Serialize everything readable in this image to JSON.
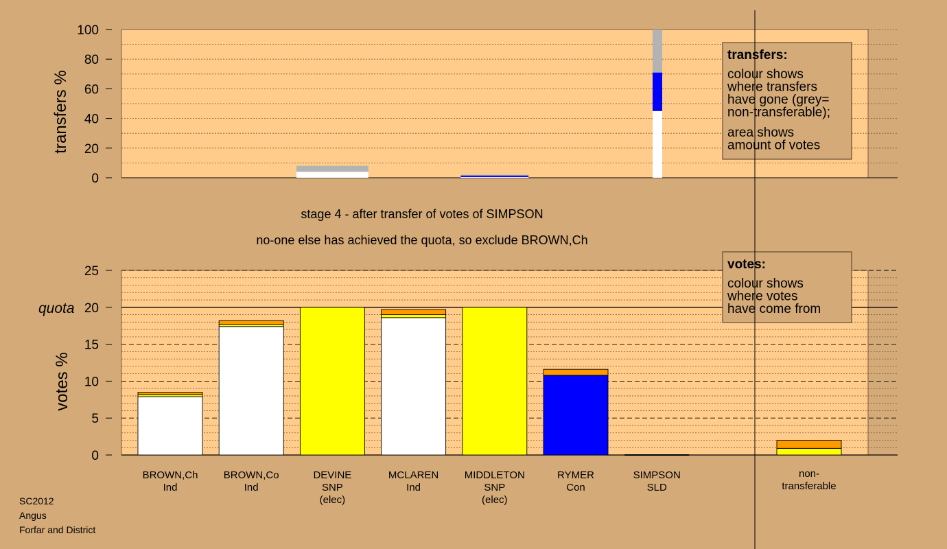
{
  "colors": {
    "background": "#d4aa78",
    "panel": "#ffcc8c",
    "white": "#ffffff",
    "yellow": "#ffff00",
    "blue": "#0000ff",
    "orange": "#ff9900",
    "grey": "#b3b3b3",
    "ink": "#000000"
  },
  "stage_text": {
    "line1": "stage 4 - after transfer of votes of SIMPSON",
    "line2": "no-one else has achieved the quota, so exclude BROWN,Ch"
  },
  "footer": {
    "line1": "SC2012",
    "line2": "Angus",
    "line3": "Forfar and District"
  },
  "legend_transfers": {
    "title": "transfers:",
    "lines1": [
      "colour shows",
      "where transfers",
      "have gone (grey=",
      "non-transferable);"
    ],
    "lines2": [
      "area shows",
      "amount of votes"
    ]
  },
  "legend_votes": {
    "title": "votes:",
    "lines": [
      "colour shows",
      "where votes",
      "have come from"
    ]
  },
  "chart_data": [
    {
      "type": "bar",
      "ylabel": "transfers %",
      "ylim": [
        0,
        100
      ],
      "yticks": [
        "0",
        "20",
        "40",
        "60",
        "80",
        "100"
      ],
      "note": "stacked transfer bars; bar width proportional to votes transferred",
      "bars": [
        {
          "candidate": "DEVINE",
          "relative_width": 0.035,
          "segments": [
            {
              "color": "white",
              "value": 4
            },
            {
              "color": "grey",
              "value": 4
            }
          ]
        },
        {
          "candidate": "MIDDLETON",
          "relative_width": 0.033,
          "segments": [
            {
              "color": "white",
              "value": 0.5
            },
            {
              "color": "blue",
              "value": 1
            },
            {
              "color": "grey",
              "value": 0.5
            }
          ]
        },
        {
          "candidate": "SIMPSON",
          "relative_width": 0.005,
          "segments": [
            {
              "color": "white",
              "value": 45
            },
            {
              "color": "blue",
              "value": 26
            },
            {
              "color": "grey",
              "value": 29
            }
          ]
        }
      ]
    },
    {
      "type": "bar",
      "ylabel": "votes %",
      "ylim": [
        0,
        25
      ],
      "yticks": [
        "0",
        "5",
        "10",
        "15",
        "20",
        "25"
      ],
      "quota": 20,
      "quota_label": "quota",
      "categories": [
        {
          "name": "BROWN,Ch",
          "party": "Ind",
          "status": ""
        },
        {
          "name": "BROWN,Co",
          "party": "Ind",
          "status": ""
        },
        {
          "name": "DEVINE",
          "party": "SNP",
          "status": "(elec)"
        },
        {
          "name": "MCLAREN",
          "party": "Ind",
          "status": ""
        },
        {
          "name": "MIDDLETON",
          "party": "SNP",
          "status": "(elec)"
        },
        {
          "name": "RYMER",
          "party": "Con",
          "status": ""
        },
        {
          "name": "SIMPSON",
          "party": "SLD",
          "status": ""
        }
      ],
      "nontransferable_label": [
        "non-",
        "transferable"
      ],
      "stacks": [
        [
          {
            "color": "white",
            "value": 7.9
          },
          {
            "color": "yellow",
            "value": 0.3
          },
          {
            "color": "orange",
            "value": 0.3
          }
        ],
        [
          {
            "color": "white",
            "value": 17.4
          },
          {
            "color": "yellow",
            "value": 0.3
          },
          {
            "color": "orange",
            "value": 0.5
          }
        ],
        [
          {
            "color": "yellow",
            "value": 20.0
          }
        ],
        [
          {
            "color": "white",
            "value": 18.6
          },
          {
            "color": "yellow",
            "value": 0.4
          },
          {
            "color": "orange",
            "value": 0.7
          }
        ],
        [
          {
            "color": "yellow",
            "value": 20.0
          }
        ],
        [
          {
            "color": "blue",
            "value": 10.8
          },
          {
            "color": "orange",
            "value": 0.8
          }
        ],
        []
      ],
      "nontransferable_stack": [
        {
          "color": "yellow",
          "value": 0.9
        },
        {
          "color": "orange",
          "value": 1.1
        }
      ]
    }
  ]
}
